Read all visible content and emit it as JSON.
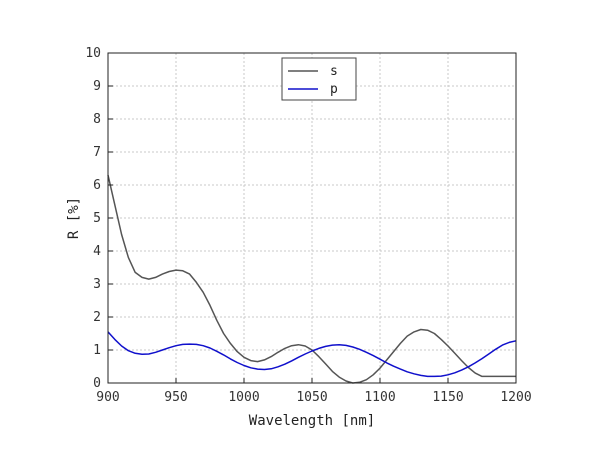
{
  "chart_data": {
    "type": "line",
    "xlabel": "Wavelength [nm]",
    "ylabel": "R [%]",
    "xlim": [
      900,
      1200
    ],
    "ylim": [
      0,
      10
    ],
    "xticks": [
      900,
      950,
      1000,
      1050,
      1100,
      1150,
      1200
    ],
    "yticks": [
      0,
      1,
      2,
      3,
      4,
      5,
      6,
      7,
      8,
      9,
      10
    ],
    "grid": true,
    "legend_position": "top-center",
    "series": [
      {
        "name": "s",
        "color": "#555555",
        "x": [
          900,
          905,
          910,
          915,
          920,
          925,
          930,
          935,
          940,
          945,
          950,
          955,
          960,
          965,
          970,
          975,
          980,
          985,
          990,
          995,
          1000,
          1005,
          1010,
          1015,
          1020,
          1025,
          1030,
          1035,
          1040,
          1045,
          1050,
          1055,
          1060,
          1065,
          1070,
          1075,
          1080,
          1085,
          1090,
          1095,
          1100,
          1105,
          1110,
          1115,
          1120,
          1125,
          1130,
          1135,
          1140,
          1145,
          1150,
          1155,
          1160,
          1165,
          1170,
          1175,
          1180,
          1185,
          1190,
          1195,
          1200
        ],
        "y": [
          6.3,
          5.4,
          4.5,
          3.8,
          3.35,
          3.2,
          3.15,
          3.2,
          3.3,
          3.38,
          3.42,
          3.4,
          3.3,
          3.05,
          2.75,
          2.35,
          1.9,
          1.5,
          1.2,
          0.95,
          0.78,
          0.68,
          0.65,
          0.7,
          0.8,
          0.93,
          1.05,
          1.13,
          1.16,
          1.12,
          1.0,
          0.8,
          0.58,
          0.35,
          0.18,
          0.06,
          0.0,
          0.02,
          0.1,
          0.25,
          0.45,
          0.7,
          0.95,
          1.2,
          1.42,
          1.55,
          1.62,
          1.6,
          1.5,
          1.32,
          1.12,
          0.9,
          0.68,
          0.47,
          0.3,
          0.2,
          0.2,
          0.2,
          0.2,
          0.2,
          0.2
        ]
      },
      {
        "name": "p",
        "color": "#1010cc",
        "x": [
          900,
          905,
          910,
          915,
          920,
          925,
          930,
          935,
          940,
          945,
          950,
          955,
          960,
          965,
          970,
          975,
          980,
          985,
          990,
          995,
          1000,
          1005,
          1010,
          1015,
          1020,
          1025,
          1030,
          1035,
          1040,
          1045,
          1050,
          1055,
          1060,
          1065,
          1070,
          1075,
          1080,
          1085,
          1090,
          1095,
          1100,
          1105,
          1110,
          1115,
          1120,
          1125,
          1130,
          1135,
          1140,
          1145,
          1150,
          1155,
          1160,
          1165,
          1170,
          1175,
          1180,
          1185,
          1190,
          1195,
          1200
        ],
        "y": [
          1.55,
          1.32,
          1.12,
          0.98,
          0.9,
          0.87,
          0.88,
          0.93,
          1.0,
          1.07,
          1.13,
          1.17,
          1.18,
          1.17,
          1.13,
          1.06,
          0.96,
          0.85,
          0.73,
          0.62,
          0.53,
          0.46,
          0.42,
          0.41,
          0.43,
          0.49,
          0.57,
          0.67,
          0.78,
          0.88,
          0.97,
          1.05,
          1.11,
          1.15,
          1.16,
          1.14,
          1.09,
          1.02,
          0.93,
          0.83,
          0.72,
          0.61,
          0.51,
          0.42,
          0.34,
          0.28,
          0.23,
          0.2,
          0.2,
          0.21,
          0.25,
          0.31,
          0.39,
          0.49,
          0.61,
          0.74,
          0.88,
          1.02,
          1.15,
          1.23,
          1.28
        ]
      }
    ]
  }
}
